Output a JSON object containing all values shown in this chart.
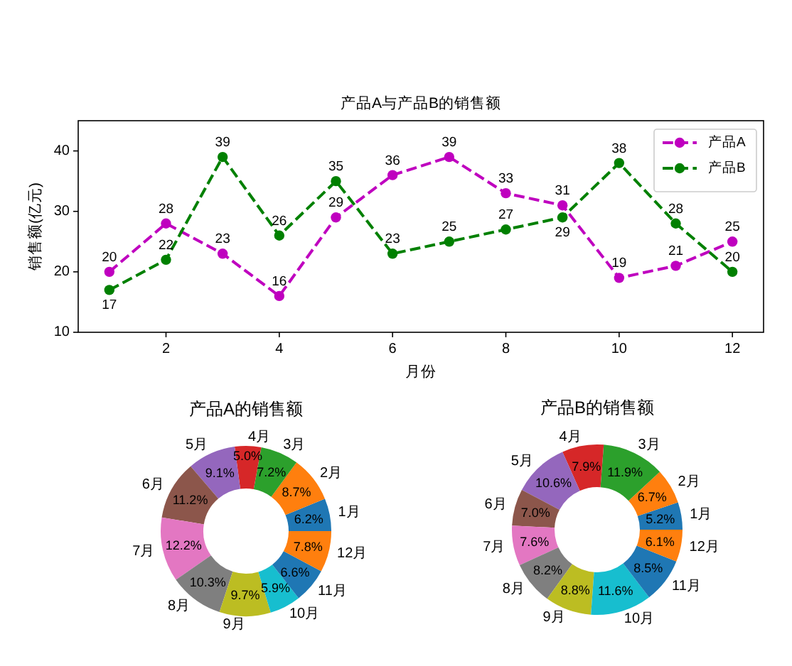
{
  "chart_data": [
    {
      "type": "line",
      "title": "产品A与产品B的销售额",
      "xlabel": "月份",
      "ylabel": "销售额(亿元)",
      "x": [
        1,
        2,
        3,
        4,
        5,
        6,
        7,
        8,
        9,
        10,
        11,
        12
      ],
      "series": [
        {
          "name": "产品A",
          "color": "#bf00bf",
          "values": [
            20,
            28,
            23,
            16,
            29,
            36,
            39,
            33,
            31,
            19,
            21,
            25
          ]
        },
        {
          "name": "产品B",
          "color": "#008000",
          "values": [
            17,
            22,
            39,
            26,
            35,
            23,
            25,
            27,
            29,
            38,
            28,
            20
          ]
        }
      ],
      "xlim": [
        0.45,
        12.55
      ],
      "ylim": [
        10,
        45
      ],
      "xticks": [
        2,
        4,
        6,
        8,
        10,
        12
      ],
      "yticks": [
        10,
        20,
        30,
        40
      ],
      "data_labels": true,
      "legend": "top right",
      "marker": "circle",
      "line_style": "dashed"
    },
    {
      "type": "donut",
      "title": "产品A的销售额",
      "categories": [
        "1月",
        "2月",
        "3月",
        "4月",
        "5月",
        "6月",
        "7月",
        "8月",
        "9月",
        "10月",
        "11月",
        "12月"
      ],
      "values": [
        6.2,
        8.7,
        7.2,
        5.0,
        9.1,
        11.2,
        12.2,
        10.3,
        9.7,
        5.9,
        6.6,
        7.8
      ],
      "value_labels": [
        "6.2%",
        "8.7%",
        "7.2%",
        "5.0%",
        "9.1%",
        "11.2%",
        "12.2%",
        "10.3%",
        "9.7%",
        "5.9%",
        "6.6%",
        "7.8%"
      ],
      "colors": [
        "#1f77b4",
        "#ff7f0e",
        "#2ca02c",
        "#d62728",
        "#9467bd",
        "#8c564b",
        "#e377c2",
        "#7f7f7f",
        "#bcbd22",
        "#17becf",
        "#1f77b4",
        "#ff7f0e"
      ]
    },
    {
      "type": "donut",
      "title": "产品B的销售额",
      "categories": [
        "1月",
        "2月",
        "3月",
        "4月",
        "5月",
        "6月",
        "7月",
        "8月",
        "9月",
        "10月",
        "11月",
        "12月"
      ],
      "values": [
        5.2,
        6.7,
        11.9,
        7.9,
        10.6,
        7.0,
        7.6,
        8.2,
        8.8,
        11.6,
        8.5,
        6.1
      ],
      "value_labels": [
        "5.2%",
        "6.7%",
        "11.9%",
        "7.9%",
        "10.6%",
        "7.0%",
        "7.6%",
        "8.2%",
        "8.8%",
        "11.6%",
        "8.5%",
        "6.1%"
      ],
      "colors": [
        "#1f77b4",
        "#ff7f0e",
        "#2ca02c",
        "#d62728",
        "#9467bd",
        "#8c564b",
        "#e377c2",
        "#7f7f7f",
        "#bcbd22",
        "#17becf",
        "#1f77b4",
        "#ff7f0e"
      ]
    }
  ]
}
